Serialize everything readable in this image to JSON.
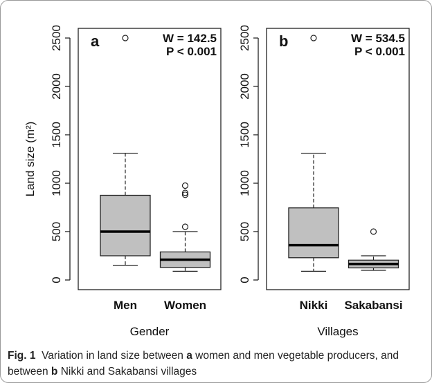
{
  "chart_data": [
    {
      "type": "box",
      "panel": "a",
      "annotations": [
        "W = 142.5",
        "P < 0.001"
      ],
      "xlabel": "Gender",
      "ylabel": "Land size (m²)",
      "color": "#c0c0c0",
      "categories": [
        "Men",
        "Women"
      ],
      "boxes": [
        {
          "min": 150,
          "q1": 250,
          "median": 500,
          "q3": 875,
          "max": 1310,
          "outliers": [
            2500
          ]
        },
        {
          "min": 90,
          "q1": 130,
          "median": 210,
          "q3": 290,
          "max": 500,
          "outliers": [
            550,
            880,
            900,
            975
          ]
        }
      ],
      "ylim": [
        -100,
        2600
      ],
      "yticks": [
        0,
        500,
        1000,
        1500,
        2000,
        2500
      ]
    },
    {
      "type": "box",
      "panel": "b",
      "annotations": [
        "W = 534.5",
        "P < 0.001"
      ],
      "xlabel": "Villages",
      "color": "#c0c0c0",
      "categories": [
        "Nikki",
        "Sakabansi"
      ],
      "boxes": [
        {
          "min": 90,
          "q1": 230,
          "median": 360,
          "q3": 745,
          "max": 1310,
          "outliers": [
            2500
          ]
        },
        {
          "min": 100,
          "q1": 125,
          "median": 165,
          "q3": 205,
          "max": 250,
          "outliers": [
            500
          ]
        }
      ],
      "ylim": [
        -100,
        2600
      ],
      "yticks": [
        0,
        500,
        1000,
        1500,
        2000,
        2500
      ]
    }
  ],
  "caption": [
    "Fig. 1",
    "Variation in land size between",
    "a",
    "women and men vegetable producers, and between",
    "b",
    "Nikki and Sakabansi villages"
  ]
}
